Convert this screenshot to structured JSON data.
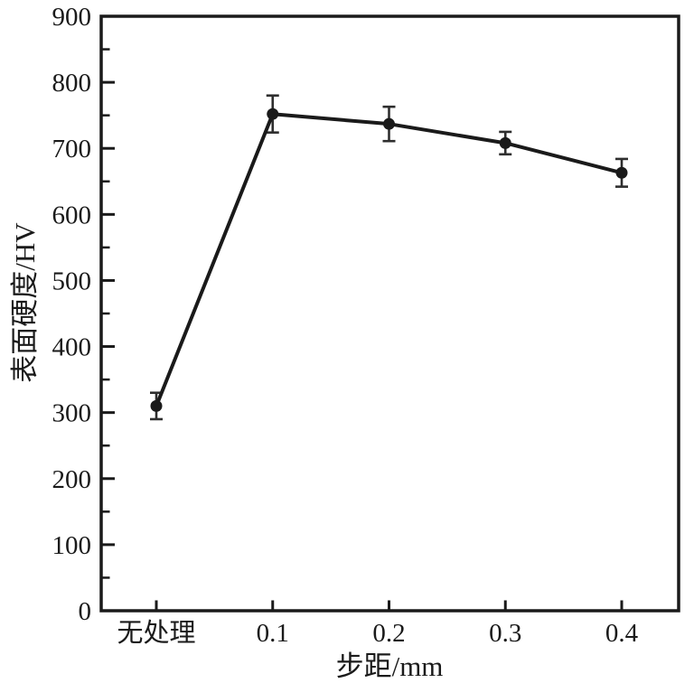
{
  "figure": {
    "background": "#ffffff",
    "ink_color": "#1a1a1a"
  },
  "chart_data": {
    "type": "line",
    "title": "",
    "xlabel": "步距/mm",
    "ylabel": "表面硬度/HV",
    "categories": [
      "无处理",
      "0.1",
      "0.2",
      "0.3",
      "0.4"
    ],
    "series": [
      {
        "name": "表面硬度",
        "values": [
          310,
          752,
          737,
          708,
          663
        ],
        "errors": [
          20,
          28,
          26,
          17,
          21
        ]
      }
    ],
    "ylim": [
      0,
      900
    ],
    "y_major_ticks": [
      0,
      100,
      200,
      300,
      400,
      500,
      600,
      700,
      800,
      900
    ],
    "y_minor_tick_step": 50,
    "grid": false,
    "legend": false,
    "marker": "filled-circle",
    "line_color": "#1a1a1a",
    "error_bar_color": "#2e2e2e"
  }
}
